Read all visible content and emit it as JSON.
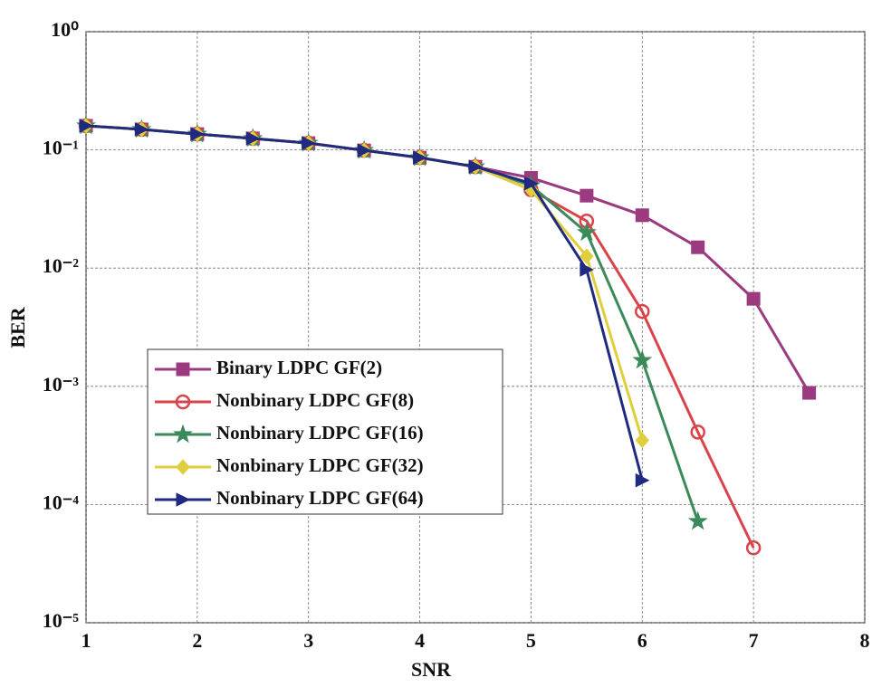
{
  "chart_data": {
    "type": "line",
    "x_label": "SNR",
    "y_label": "BER",
    "xlim": [
      1,
      8
    ],
    "xticks": [
      1,
      2,
      3,
      4,
      5,
      6,
      7,
      8
    ],
    "ylim": [
      1e-05,
      1
    ],
    "log_y": true,
    "grid": true,
    "legend": "lower left",
    "yticks": [
      {
        "value": 1,
        "label": "10⁰"
      },
      {
        "value": 0.1,
        "label": "10⁻¹"
      },
      {
        "value": 0.01,
        "label": "10⁻²"
      },
      {
        "value": 0.001,
        "label": "10⁻³"
      },
      {
        "value": 0.0001,
        "label": "10⁻⁴"
      },
      {
        "value": 1e-05,
        "label": "10⁻⁵"
      }
    ],
    "series": [
      {
        "name": "Binary LDPC GF(2)",
        "color": "#9b3a7e",
        "marker": "square",
        "x": [
          1,
          1.5,
          2,
          2.5,
          3,
          3.5,
          4,
          4.5,
          5,
          5.5,
          6,
          6.5,
          7,
          7.5
        ],
        "values": [
          0.16,
          0.149,
          0.136,
          0.125,
          0.114,
          0.099,
          0.086,
          0.072,
          0.058,
          0.041,
          0.028,
          0.015,
          0.0055,
          0.00088
        ]
      },
      {
        "name": "Nonbinary LDPC GF(8)",
        "color": "#d9434a",
        "marker": "circle",
        "x": [
          1,
          1.5,
          2,
          2.5,
          3,
          3.5,
          4,
          4.5,
          5,
          5.5,
          6,
          6.5,
          7
        ],
        "values": [
          0.16,
          0.149,
          0.136,
          0.125,
          0.114,
          0.099,
          0.086,
          0.072,
          0.046,
          0.025,
          0.0043,
          0.00041,
          4.3e-05
        ]
      },
      {
        "name": "Nonbinary LDPC GF(16)",
        "color": "#3a8a5a",
        "marker": "star",
        "x": [
          1,
          1.5,
          2,
          2.5,
          3,
          3.5,
          4,
          4.5,
          5,
          5.5,
          6,
          6.5
        ],
        "values": [
          0.16,
          0.149,
          0.136,
          0.125,
          0.114,
          0.099,
          0.086,
          0.072,
          0.05,
          0.02,
          0.00166,
          7.2e-05
        ]
      },
      {
        "name": "Nonbinary LDPC GF(32)",
        "color": "#e0cf3c",
        "marker": "diamond",
        "x": [
          1,
          1.5,
          2,
          2.5,
          3,
          3.5,
          4,
          4.5,
          5,
          5.5,
          6
        ],
        "values": [
          0.16,
          0.149,
          0.136,
          0.125,
          0.114,
          0.099,
          0.086,
          0.072,
          0.046,
          0.0126,
          0.00035
        ]
      },
      {
        "name": "Nonbinary LDPC GF(64)",
        "color": "#1f2a80",
        "marker": "triangle-right",
        "x": [
          1,
          1.5,
          2,
          2.5,
          3,
          3.5,
          4,
          4.5,
          5,
          5.5,
          6
        ],
        "values": [
          0.16,
          0.149,
          0.136,
          0.125,
          0.114,
          0.099,
          0.086,
          0.072,
          0.052,
          0.0097,
          0.00016
        ]
      }
    ]
  }
}
